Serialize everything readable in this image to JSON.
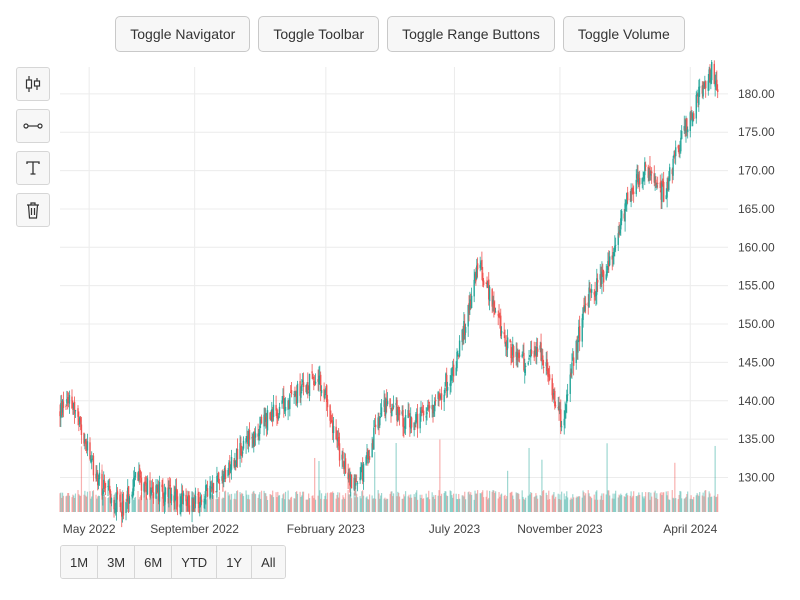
{
  "top_buttons": {
    "navigator": "Toggle Navigator",
    "toolbar": "Toggle Toolbar",
    "range_buttons": "Toggle Range Buttons",
    "volume": "Toggle Volume"
  },
  "tools": [
    "candlestick-icon",
    "line-segment-icon",
    "text-icon",
    "trash-icon"
  ],
  "range_buttons": [
    "1M",
    "3M",
    "6M",
    "YTD",
    "1Y",
    "All"
  ],
  "colors": {
    "up": "#26a69a",
    "down": "#ef5350",
    "grid": "#ececec"
  },
  "chart_data": {
    "type": "candlestick",
    "x_tick_labels": [
      "May 2022",
      "September 2022",
      "February 2023",
      "July 2023",
      "November 2023",
      "April 2024"
    ],
    "y_tick_labels": [
      "130.00",
      "135.00",
      "140.00",
      "145.00",
      "150.00",
      "155.00",
      "160.00",
      "165.00",
      "170.00",
      "175.00",
      "180.00"
    ],
    "ylim": [
      125.5,
      183.5
    ],
    "xlim": [
      "2022-03-28",
      "2024-05-15"
    ],
    "grid": true,
    "volume_shown": true,
    "series": [
      {
        "name": "",
        "points": [
          [
            "2022-03-28",
            138.5
          ],
          [
            "2022-04-08",
            141.0
          ],
          [
            "2022-04-22",
            136.0
          ],
          [
            "2022-05-06",
            131.0
          ],
          [
            "2022-05-20",
            128.0
          ],
          [
            "2022-06-10",
            126.0
          ],
          [
            "2022-06-24",
            130.0
          ],
          [
            "2022-07-15",
            128.5
          ],
          [
            "2022-08-05",
            127.5
          ],
          [
            "2022-08-26",
            126.5
          ],
          [
            "2022-09-16",
            128.0
          ],
          [
            "2022-10-07",
            131.0
          ],
          [
            "2022-10-28",
            134.0
          ],
          [
            "2022-11-18",
            137.0
          ],
          [
            "2022-12-09",
            139.0
          ],
          [
            "2022-12-30",
            141.0
          ],
          [
            "2023-01-20",
            143.0
          ],
          [
            "2023-02-03",
            140.0
          ],
          [
            "2023-02-17",
            133.0
          ],
          [
            "2023-03-03",
            129.0
          ],
          [
            "2023-03-17",
            131.0
          ],
          [
            "2023-03-31",
            136.0
          ],
          [
            "2023-04-14",
            140.0
          ],
          [
            "2023-04-28",
            138.0
          ],
          [
            "2023-05-19",
            137.0
          ],
          [
            "2023-06-09",
            140.0
          ],
          [
            "2023-06-30",
            144.0
          ],
          [
            "2023-07-14",
            150.0
          ],
          [
            "2023-07-28",
            158.0
          ],
          [
            "2023-08-11",
            154.0
          ],
          [
            "2023-08-25",
            149.0
          ],
          [
            "2023-09-08",
            146.0
          ],
          [
            "2023-09-22",
            145.0
          ],
          [
            "2023-10-06",
            147.0
          ],
          [
            "2023-10-20",
            143.0
          ],
          [
            "2023-11-03",
            137.0
          ],
          [
            "2023-11-17",
            145.0
          ],
          [
            "2023-12-01",
            153.0
          ],
          [
            "2023-12-15",
            155.0
          ],
          [
            "2024-01-05",
            160.0
          ],
          [
            "2024-01-19",
            167.0
          ],
          [
            "2024-02-09",
            170.0
          ],
          [
            "2024-03-01",
            167.0
          ],
          [
            "2024-03-15",
            172.0
          ],
          [
            "2024-03-29",
            176.0
          ],
          [
            "2024-04-12",
            180.0
          ],
          [
            "2024-04-26",
            183.0
          ],
          [
            "2024-05-03",
            179.5
          ]
        ]
      }
    ]
  }
}
